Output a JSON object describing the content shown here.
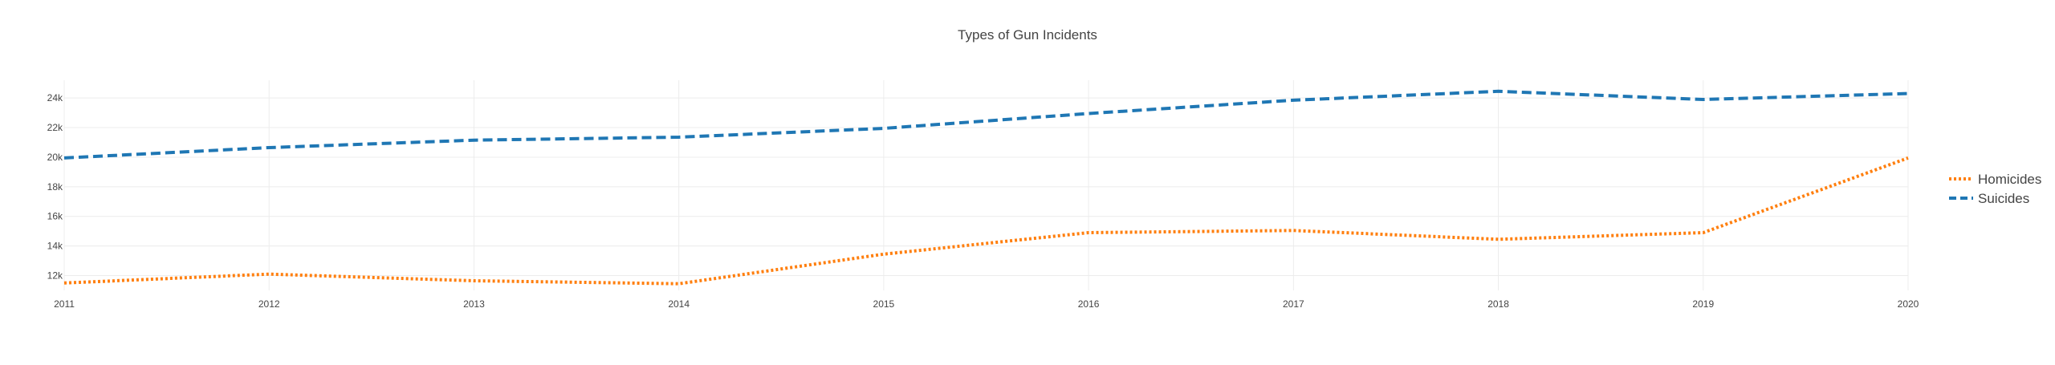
{
  "chart_data": {
    "type": "line",
    "title": "Types of Gun Incidents",
    "xlabel": "",
    "ylabel": "",
    "x": [
      2011,
      2012,
      2013,
      2014,
      2015,
      2016,
      2017,
      2018,
      2019,
      2020
    ],
    "xlim": [
      2011,
      2020
    ],
    "ylim": [
      11000,
      25200
    ],
    "y_ticks": [
      12000,
      14000,
      16000,
      18000,
      20000,
      22000,
      24000
    ],
    "y_tick_labels": [
      "12k",
      "14k",
      "16k",
      "18k",
      "20k",
      "22k",
      "24k"
    ],
    "x_tick_labels": [
      "2011",
      "2012",
      "2013",
      "2014",
      "2015",
      "2016",
      "2017",
      "2018",
      "2019",
      "2020"
    ],
    "grid": true,
    "legend_position": "right",
    "series": [
      {
        "name": "Homicides",
        "color": "#ff7f0e",
        "dash": "dotted",
        "values": [
          11500,
          12100,
          11650,
          11450,
          13450,
          14900,
          15050,
          14450,
          14900,
          19950
        ]
      },
      {
        "name": "Suicides",
        "color": "#1f77b4",
        "dash": "dashed",
        "values": [
          19950,
          20650,
          21150,
          21350,
          21950,
          22950,
          23850,
          24450,
          23900,
          24300
        ]
      }
    ]
  }
}
